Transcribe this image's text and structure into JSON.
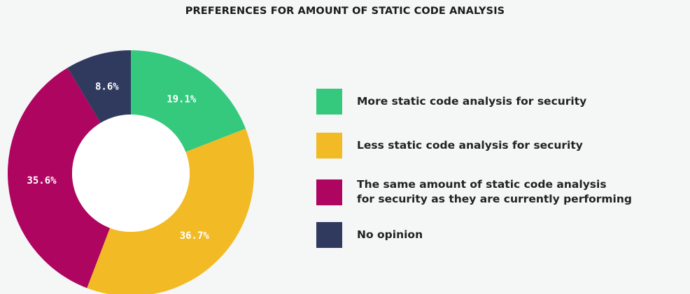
{
  "chart_data": {
    "type": "pie",
    "title": "PREFERENCES FOR AMOUNT OF STATIC CODE ANALYSIS",
    "donut": true,
    "slices": [
      {
        "name": "More static code analysis for security",
        "value": 19.1,
        "label": "19.1%",
        "color": "#35c97e"
      },
      {
        "name": "Less static code analysis for security",
        "value": 36.7,
        "label": "36.7%",
        "color": "#f2bb26"
      },
      {
        "name": "The same amount of static code analysis\nfor security as they are currently performing",
        "value": 35.6,
        "label": "35.6%",
        "color": "#ad0560"
      },
      {
        "name": "No opinion",
        "value": 8.6,
        "label": "8.6%",
        "color": "#2f3a5e"
      }
    ],
    "legend_position": "right"
  },
  "colors": {
    "background": "#f5f6f6",
    "donut_hole": "#ffffff"
  }
}
